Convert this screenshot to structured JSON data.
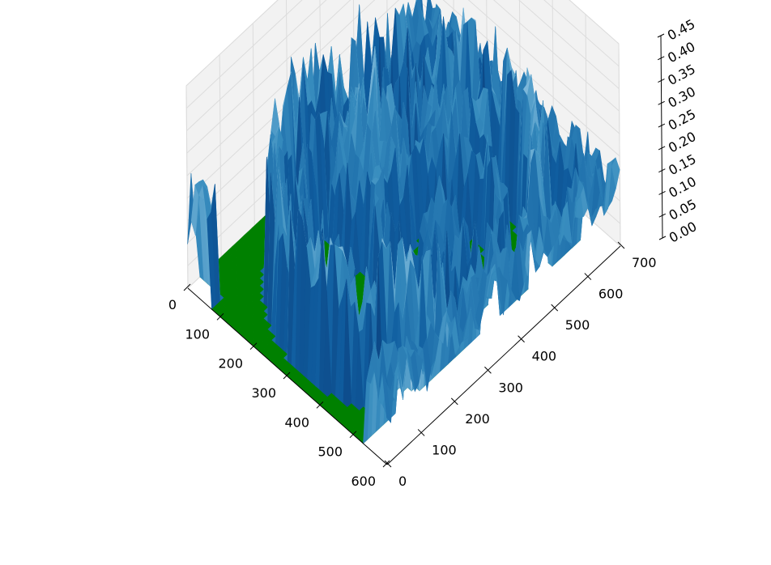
{
  "chart_data": {
    "type": "surface3d",
    "title": "",
    "xlabel": "",
    "ylabel": "",
    "zlabel": "",
    "xlim": [
      0,
      600
    ],
    "ylim": [
      0,
      700
    ],
    "zlim": [
      0.0,
      0.45
    ],
    "x_ticks": [
      "0",
      "100",
      "200",
      "300",
      "400",
      "500",
      "600"
    ],
    "y_ticks": [
      "0",
      "100",
      "200",
      "300",
      "400",
      "500",
      "600",
      "700"
    ],
    "z_ticks": [
      "0.00",
      "0.05",
      "0.10",
      "0.15",
      "0.20",
      "0.25",
      "0.30",
      "0.35",
      "0.40",
      "0.45"
    ],
    "base_color": "#008000",
    "colormap": "Blues",
    "grid": true,
    "features": [
      {
        "shape": "ring",
        "cx": 330,
        "cy": 330,
        "r_outer": 300,
        "r_inner": 262,
        "start_deg": 30,
        "end_deg": 332,
        "height": 0.36
      },
      {
        "shape": "ring",
        "cx": 330,
        "cy": 330,
        "r_outer": 238,
        "r_inner": 212,
        "start_deg": 80,
        "end_deg": 285,
        "height": 0.28
      },
      {
        "shape": "ring",
        "cx": 380,
        "cy": 380,
        "r_outer": 150,
        "r_inner": 118,
        "start_deg": 0,
        "end_deg": 360,
        "height": 0.25
      },
      {
        "shape": "blob",
        "cx": 200,
        "cy": 360,
        "r": 90,
        "height": 0.45
      },
      {
        "shape": "blob",
        "cx": 260,
        "cy": 520,
        "r": 60,
        "height": 0.3
      },
      {
        "shape": "blob",
        "cx": 380,
        "cy": 390,
        "r": 55,
        "height": 0.25
      },
      {
        "shape": "blob",
        "cx": 40,
        "cy": 640,
        "r": 45,
        "height": 0.3
      },
      {
        "shape": "box",
        "x0": 0,
        "x1": 70,
        "y0": 0,
        "y1": 35,
        "height": 0.28
      },
      {
        "shape": "box",
        "x0": 540,
        "x1": 600,
        "y0": 0,
        "y1": 700,
        "height": 0.22
      },
      {
        "shape": "box",
        "x0": 0,
        "x1": 600,
        "y0": 662,
        "y1": 700,
        "height": 0.2
      }
    ]
  }
}
